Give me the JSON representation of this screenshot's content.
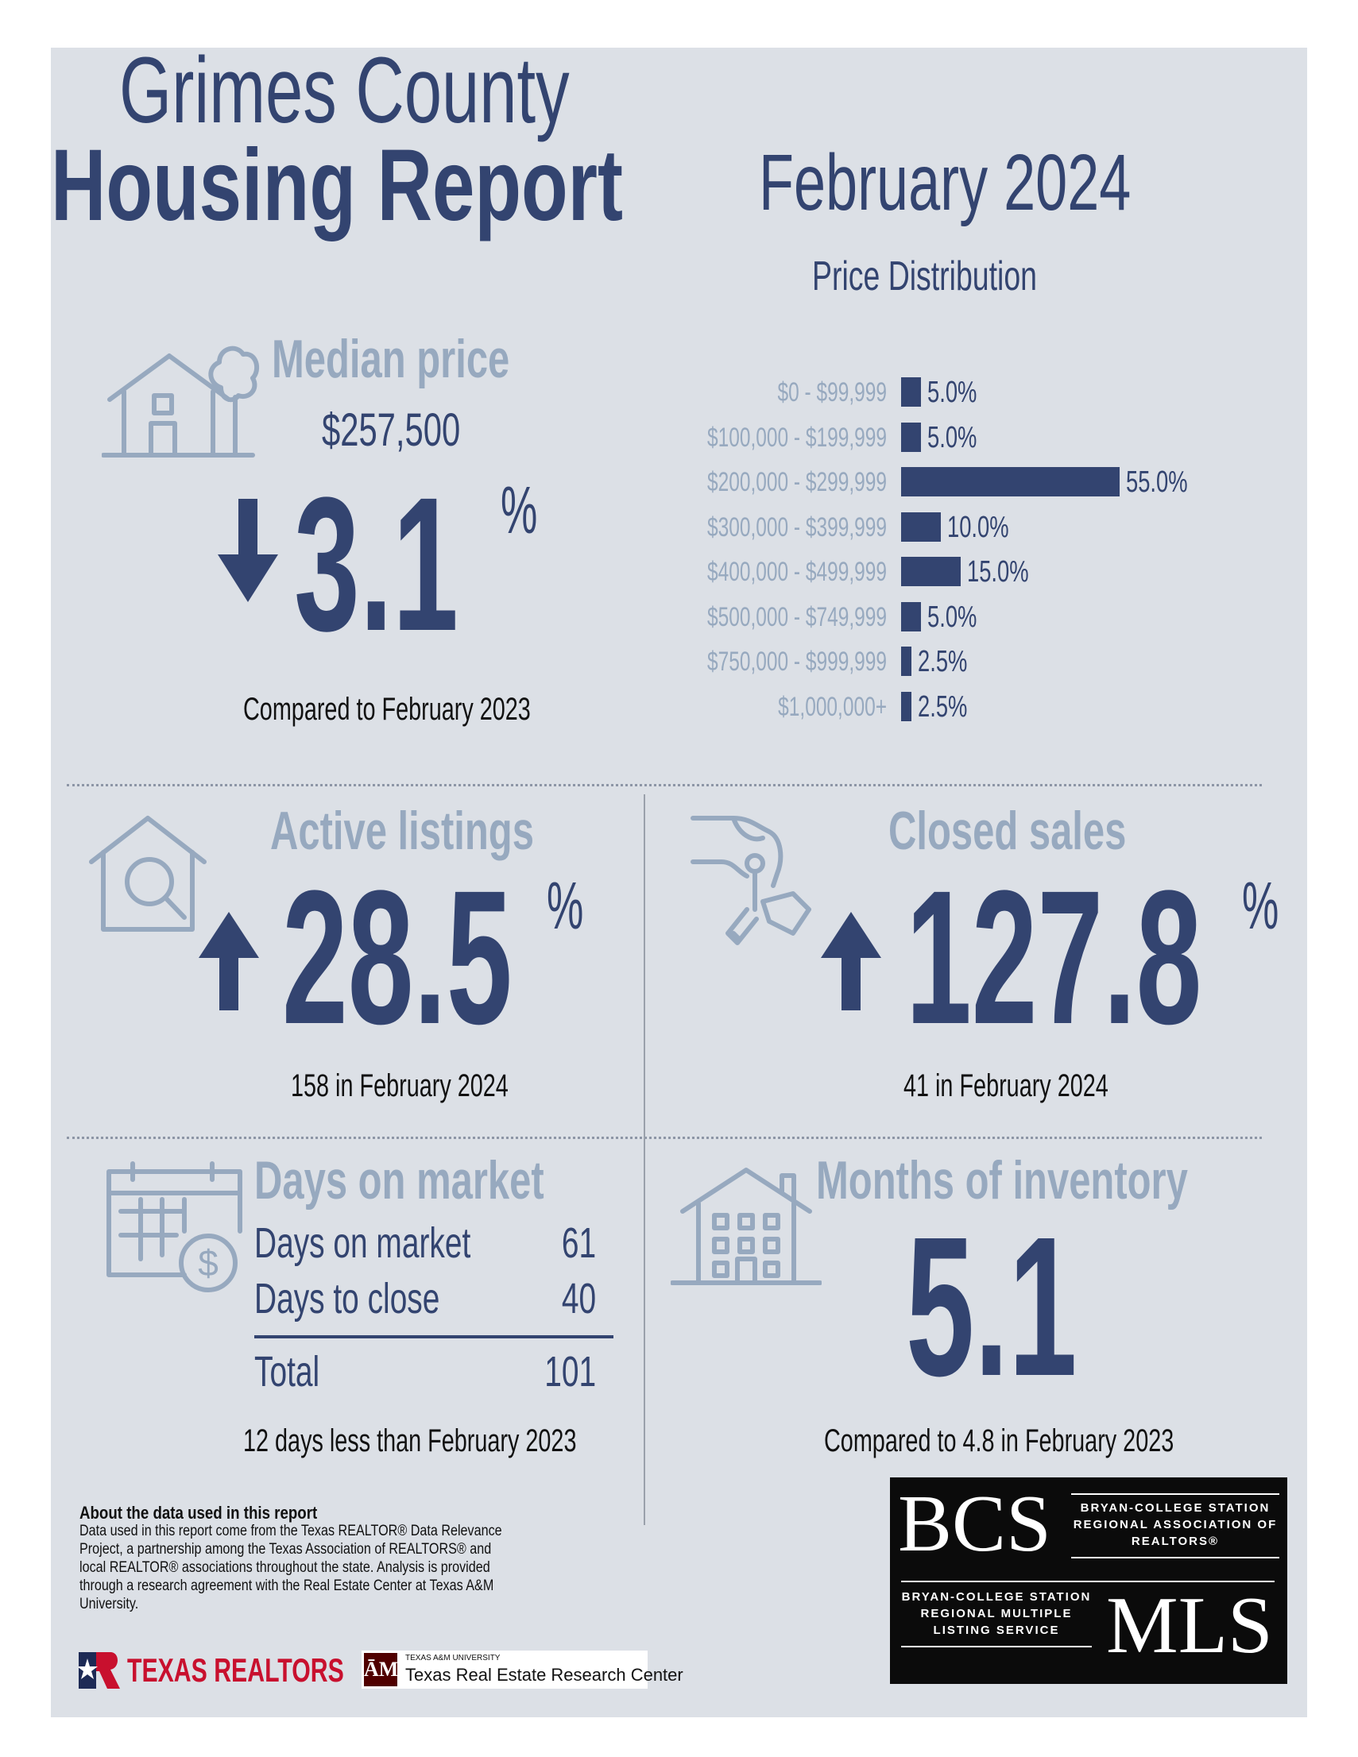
{
  "header": {
    "title_line1": "Grimes County",
    "title_line2": "Housing Report",
    "date": "February 2024"
  },
  "median_price": {
    "heading": "Median price",
    "value": "$257,500",
    "change": "3.1",
    "direction": "down",
    "pct_sign": "%",
    "note": "Compared to February 2023"
  },
  "price_distribution": {
    "title": "Price Distribution",
    "rows": [
      {
        "label": "$0 - $99,999",
        "pct_label": "5.0%",
        "value": 5.0
      },
      {
        "label": "$100,000 - $199,999",
        "pct_label": "5.0%",
        "value": 5.0
      },
      {
        "label": "$200,000 - $299,999",
        "pct_label": "55.0%",
        "value": 55.0
      },
      {
        "label": "$300,000 - $399,999",
        "pct_label": "10.0%",
        "value": 10.0
      },
      {
        "label": "$400,000 - $499,999",
        "pct_label": "15.0%",
        "value": 15.0
      },
      {
        "label": "$500,000 - $749,999",
        "pct_label": "5.0%",
        "value": 5.0
      },
      {
        "label": "$750,000 - $999,999",
        "pct_label": "2.5%",
        "value": 2.5
      },
      {
        "label": "$1,000,000+",
        "pct_label": "2.5%",
        "value": 2.5
      }
    ]
  },
  "active_listings": {
    "heading": "Active listings",
    "change": "28.5",
    "direction": "up",
    "pct_sign": "%",
    "note": "158 in February 2024"
  },
  "closed_sales": {
    "heading": "Closed sales",
    "change": "127.8",
    "direction": "up",
    "pct_sign": "%",
    "note": "41 in February 2024"
  },
  "days_on_market": {
    "heading": "Days on market",
    "rows": [
      {
        "label": "Days on market",
        "value": "61"
      },
      {
        "label": "Days to close",
        "value": "40"
      }
    ],
    "total_label": "Total",
    "total_value": "101",
    "note": "12 days less than February 2023"
  },
  "months_inventory": {
    "heading": "Months of inventory",
    "value": "5.1",
    "note": "Compared to 4.8 in February 2023"
  },
  "about": {
    "title": "About the data used in this report",
    "text": "Data used in this report come from the Texas REALTOR® Data Relevance Project, a partnership among the Texas Association of REALTORS® and local REALTOR® associations throughout the state. Analysis is provided through a research agreement with the Real Estate Center at Texas A&M University."
  },
  "logos": {
    "texas_realtors": "TEXAS REALTORS",
    "tamu_small": "TEXAS A&M UNIVERSITY",
    "tamu_center": "Texas Real Estate Research Center",
    "bcs_letters": "BCS",
    "bcs_assoc": "BRYAN-COLLEGE STATION REGIONAL ASSOCIATION OF REALTORS®",
    "mls_letters": "MLS",
    "mls_service": "BRYAN-COLLEGE STATION REGIONAL MULTIPLE LISTING SERVICE"
  },
  "colors": {
    "navy": "#334470",
    "slate": "#97a9bf",
    "panel": "#dce0e6"
  }
}
